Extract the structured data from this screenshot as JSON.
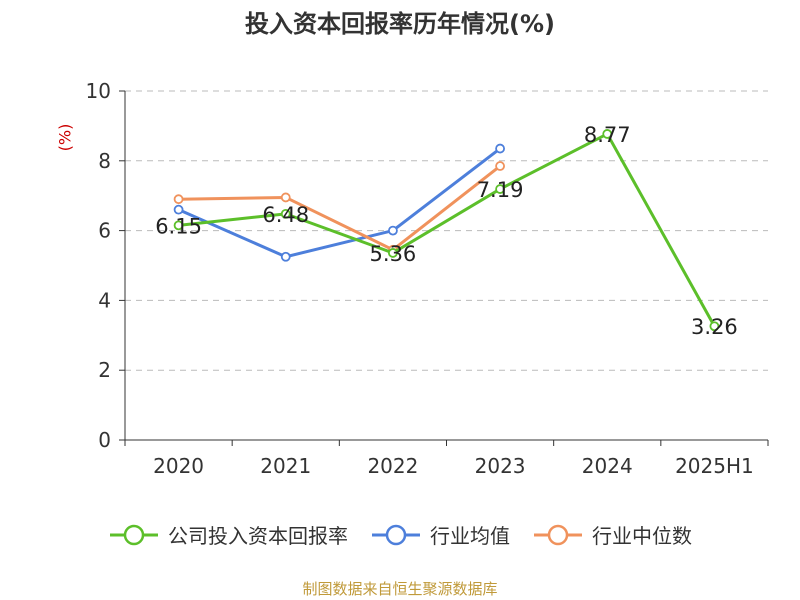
{
  "title": "投入资本回报率历年情况(%)",
  "source": "制图数据来自恒生聚源数据库",
  "colors": {
    "company": "#5cbf2a",
    "industry_avg": "#4d7fdb",
    "industry_median": "#f0925c",
    "grid": "#bbbbbb",
    "axis": "#333333",
    "ylabel": "#cc0000",
    "source": "#c09a3a"
  },
  "chart_data": {
    "type": "line",
    "title": "投入资本回报率历年情况(%)",
    "xlabel": "",
    "ylabel": "(%)",
    "ylim": [
      0,
      10
    ],
    "yticks": [
      0,
      2,
      4,
      6,
      8,
      10
    ],
    "grid": true,
    "legend_position": "bottom",
    "categories": [
      "2020",
      "2021",
      "2022",
      "2023",
      "2024",
      "2025H1"
    ],
    "series": [
      {
        "name": "公司投入资本回报率",
        "color": "#5cbf2a",
        "values": [
          6.15,
          6.48,
          5.36,
          7.19,
          8.77,
          3.26
        ],
        "labels": [
          "6.15",
          "6.48",
          "5.36",
          "7.19",
          "8.77",
          "3.26"
        ]
      },
      {
        "name": "行业均值",
        "color": "#4d7fdb",
        "values": [
          6.6,
          5.25,
          6.0,
          8.35,
          null,
          null
        ]
      },
      {
        "name": "行业中位数",
        "color": "#f0925c",
        "values": [
          6.9,
          6.95,
          5.45,
          7.85,
          null,
          null
        ]
      }
    ]
  }
}
